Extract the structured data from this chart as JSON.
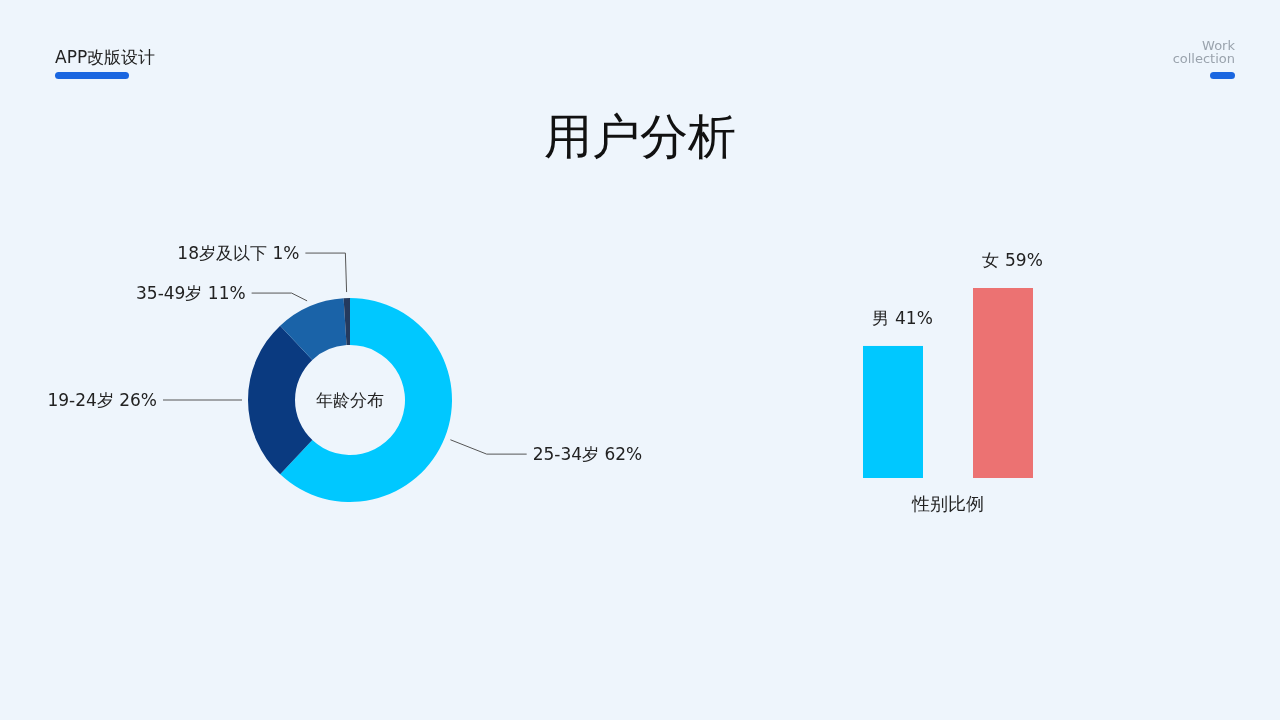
{
  "chart_data": [
    {
      "type": "other",
      "title": "用户分析",
      "annotations": [
        "APP改版设计",
        "Work collection"
      ]
    },
    {
      "type": "donut",
      "title": "年龄分布",
      "categories": [
        "25-34岁",
        "19-24岁",
        "35-49岁",
        "18岁及以下"
      ],
      "values": [
        62,
        26,
        11,
        1
      ],
      "value_labels": [
        "62%",
        "26%",
        "11%",
        "1%"
      ],
      "colors": [
        "#00c8ff",
        "#0a3a80",
        "#1a63a8",
        "#243a5e"
      ]
    },
    {
      "type": "bar",
      "xlabel": "性别比例",
      "categories": [
        "男",
        "女"
      ],
      "values": [
        41,
        59
      ],
      "value_labels": [
        "41%",
        "59%"
      ],
      "colors": [
        "#00c8ff",
        "#ec7272"
      ]
    }
  ]
}
